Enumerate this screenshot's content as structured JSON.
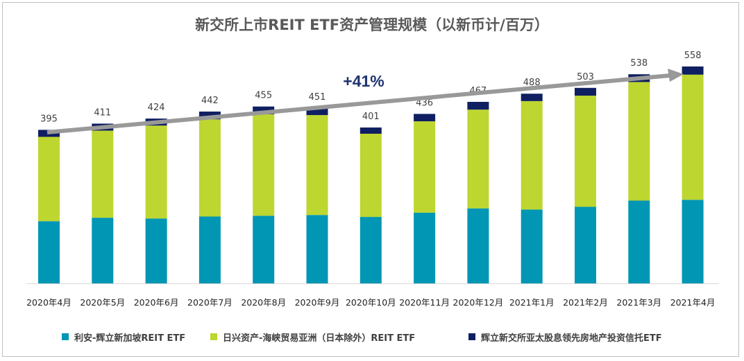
{
  "chart_data": {
    "type": "bar",
    "stacked": true,
    "title": "新交所上市REIT ETF资产管理规模（以新币计/百万）",
    "categories": [
      "2020年4月",
      "2020年5月",
      "2020年6月",
      "2020年7月",
      "2020年8月",
      "2020年9月",
      "2020年10月",
      "2020年11月",
      "2020年12月",
      "2021年1月",
      "2021年2月",
      "2021年3月",
      "2021年4月"
    ],
    "totals": [
      395,
      411,
      424,
      442,
      455,
      451,
      401,
      436,
      467,
      488,
      503,
      538,
      558
    ],
    "series": [
      {
        "name": "利安-辉立新加坡REIT ETF",
        "color": "#0096b4",
        "values": [
          160,
          169,
          167,
          172,
          174,
          176,
          171,
          182,
          193,
          190,
          197,
          213,
          215
        ]
      },
      {
        "name": "日兴资产-海峡贸易亚洲（日本除外）REIT ETF",
        "color": "#bed630",
        "values": [
          217,
          224,
          239,
          250,
          261,
          257,
          214,
          235,
          254,
          279,
          286,
          305,
          322
        ]
      },
      {
        "name": "辉立新交所亚太股息领先房地产投资信托ETF",
        "color": "#0f1f61",
        "values": [
          18,
          18,
          18,
          20,
          20,
          18,
          16,
          19,
          20,
          19,
          20,
          20,
          21
        ]
      }
    ],
    "annotation": "+41%",
    "ylim": [
      0,
      590
    ],
    "grid": false,
    "legend_position": "bottom"
  }
}
